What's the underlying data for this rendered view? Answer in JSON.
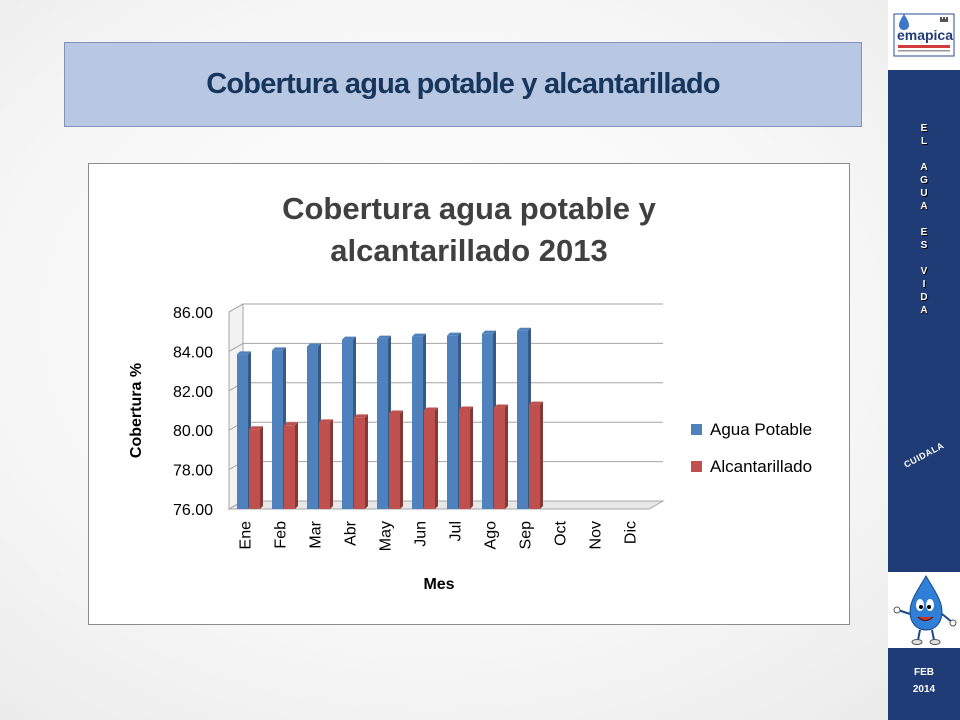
{
  "slide": {
    "title": "Cobertura agua potable y alcantarillado"
  },
  "sidebar": {
    "logo_text": "emapica",
    "motto_words": [
      "EL",
      "AGUA",
      "ES",
      "VIDA"
    ],
    "slogan": "CUIDALA",
    "date_month": "FEB",
    "date_year": "2014"
  },
  "chart_data": {
    "type": "bar",
    "title_lines": [
      "Cobertura agua potable y",
      "alcantarillado 2013"
    ],
    "xlabel": "Mes",
    "ylabel": "Cobertura %",
    "categories": [
      "Ene",
      "Feb",
      "Mar",
      "Abr",
      "May",
      "Jun",
      "Jul",
      "Ago",
      "Sep",
      "Oct",
      "Nov",
      "Dic"
    ],
    "yticks": [
      "76.00",
      "78.00",
      "80.00",
      "82.00",
      "84.00",
      "86.00"
    ],
    "ylim": [
      76,
      86
    ],
    "series": [
      {
        "name": "Agua Potable",
        "color": "#4f81bd",
        "values": [
          83.85,
          84.05,
          84.25,
          84.6,
          84.65,
          84.75,
          84.8,
          84.9,
          85.05,
          null,
          null,
          null
        ]
      },
      {
        "name": "Alcantarillado",
        "color": "#c0504d",
        "values": [
          80.05,
          80.25,
          80.4,
          80.65,
          80.85,
          81.0,
          81.05,
          81.15,
          81.3,
          null,
          null,
          null
        ]
      }
    ],
    "legend_position": "right",
    "grid": true
  }
}
